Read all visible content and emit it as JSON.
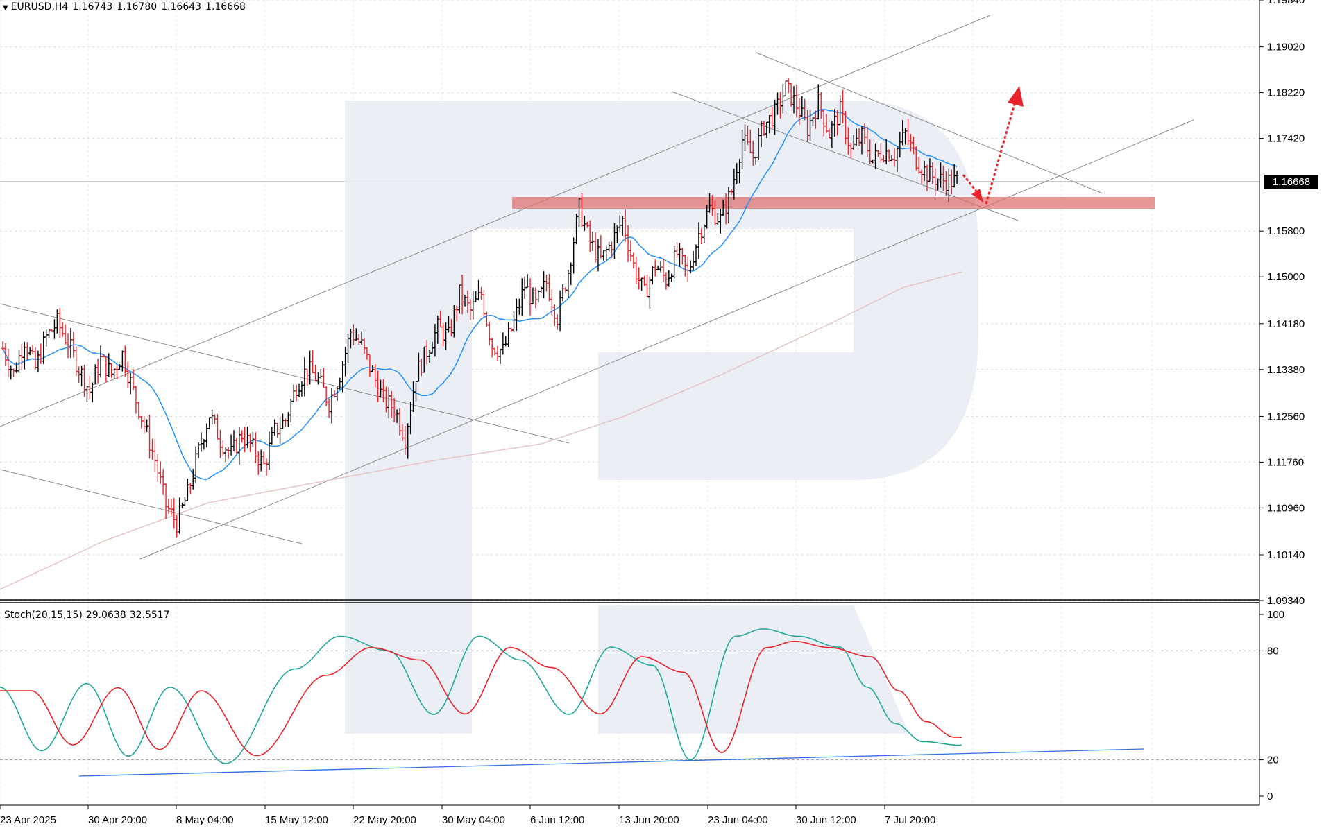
{
  "header": {
    "symbol": "EURUSD,H4",
    "open": "1.16743",
    "high": "1.16780",
    "low": "1.16643",
    "close": "1.16668"
  },
  "stochastic": {
    "label": "Stoch(20,15,15)",
    "main_value": "29.0638",
    "signal_value": "32.5517"
  },
  "colors": {
    "bull_candle": "#000000",
    "bear_candle": "#e8232a",
    "ma_fast": "#1e90ff",
    "ma_slow": "#e6c4c4",
    "stoch_main": "#20a89a",
    "stoch_signal": "#e8232a",
    "support_zone": "#e06b6b",
    "trendline": "#2b6fe0",
    "watermark": "#e7ebf3"
  },
  "chart_data": [
    {
      "type": "candlestick",
      "symbol": "EURUSD",
      "timeframe": "H4",
      "ylim": [
        1.0934,
        1.1984
      ],
      "y_ticks": [
        "1.19840",
        "1.19020",
        "1.18220",
        "1.17420",
        "1.16668",
        "1.15800",
        "1.15000",
        "1.14180",
        "1.13380",
        "1.12560",
        "1.11760",
        "1.10960",
        "1.10140",
        "1.09340"
      ],
      "current_price": "1.16668",
      "x_ticks": [
        "23 Apr 2025",
        "30 Apr 20:00",
        "8 May 04:00",
        "15 May 12:00",
        "22 May 20:00",
        "30 May 04:00",
        "6 Jun 12:00",
        "13 Jun 20:00",
        "23 Jun 04:00",
        "30 Jun 12:00",
        "7 Jul 20:00"
      ],
      "close_path": [
        1.1375,
        1.133,
        1.139,
        1.134,
        1.1395,
        1.142,
        1.1385,
        1.134,
        1.13,
        1.1355,
        1.133,
        1.1365,
        1.13,
        1.124,
        1.118,
        1.11,
        1.107,
        1.112,
        1.1195,
        1.126,
        1.1215,
        1.119,
        1.1225,
        1.12,
        1.117,
        1.123,
        1.125,
        1.131,
        1.134,
        1.132,
        1.128,
        1.133,
        1.1405,
        1.138,
        1.133,
        1.1285,
        1.127,
        1.122,
        1.133,
        1.137,
        1.141,
        1.1395,
        1.147,
        1.144,
        1.147,
        1.138,
        1.137,
        1.142,
        1.1485,
        1.145,
        1.149,
        1.143,
        1.151,
        1.162,
        1.156,
        1.153,
        1.156,
        1.16,
        1.152,
        1.147,
        1.152,
        1.1495,
        1.154,
        1.1505,
        1.1575,
        1.162,
        1.16,
        1.165,
        1.174,
        1.171,
        1.1765,
        1.1785,
        1.183,
        1.18,
        1.176,
        1.1805,
        1.175,
        1.179,
        1.172,
        1.1745,
        1.1705,
        1.172,
        1.1715,
        1.175,
        1.1705,
        1.168,
        1.167,
        1.1667
      ],
      "series": [
        {
          "name": "MA fast",
          "shape": "smooth trend following price"
        },
        {
          "name": "MA slow",
          "shape": "long-term rising average"
        }
      ],
      "annotations": {
        "support_zone": [
          1.162,
          1.164
        ],
        "ascending_channel": "upper and lower parallel lines rising",
        "descending_channel": "short-term falling channel",
        "forecast": "dip to support then rise toward 1.1830"
      }
    },
    {
      "type": "line",
      "label": "Stoch(20,15,15)",
      "ylim": [
        0,
        100
      ],
      "y_ticks": [
        "100",
        "80",
        "20",
        "0"
      ],
      "levels": [
        80,
        20
      ],
      "series": [
        {
          "name": "main",
          "last": 29.0638
        },
        {
          "name": "signal",
          "last": 32.5517
        }
      ]
    }
  ]
}
